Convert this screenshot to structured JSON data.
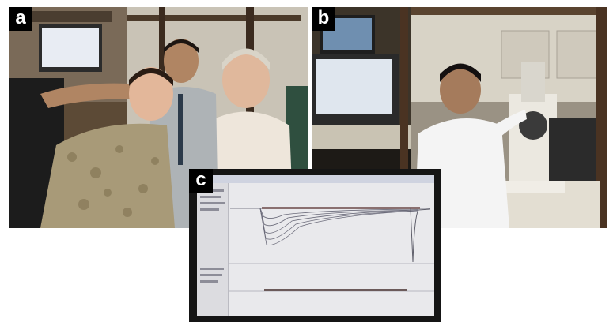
{
  "figure": {
    "panels": [
      {
        "label": "a",
        "content": "photo"
      },
      {
        "label": "b",
        "content": "photo"
      },
      {
        "label": "c",
        "content": "photo"
      }
    ]
  },
  "colors": {
    "label_bg": "#000000",
    "label_fg": "#ffffff",
    "trace_color": "#6b6b7a",
    "screen_bg": "#e9e9ec"
  }
}
